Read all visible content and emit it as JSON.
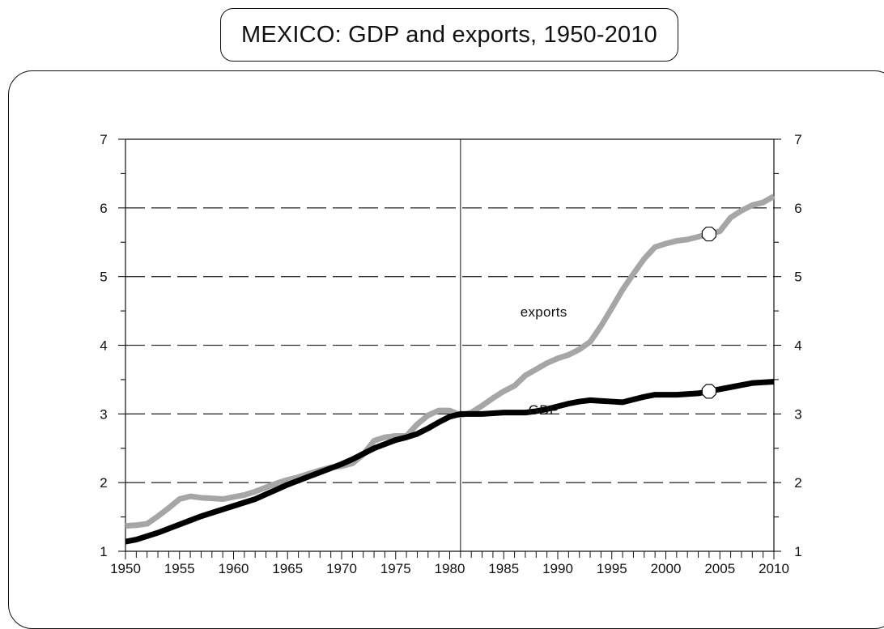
{
  "chart_data": {
    "type": "line",
    "title": "MEXICO: GDP and exports, 1950-2010",
    "xlim": [
      1950,
      2010
    ],
    "ylim": [
      1,
      7
    ],
    "x_ticks": [
      1950,
      1955,
      1960,
      1965,
      1970,
      1975,
      1980,
      1985,
      1990,
      1995,
      2000,
      2005,
      2010
    ],
    "y_ticks": [
      1,
      2,
      3,
      4,
      5,
      6,
      7
    ],
    "grid": "dashed horizontal",
    "reference_line_x": 1981,
    "series": [
      {
        "name": "exports",
        "color": "#a6a6a6",
        "x": [
          1950,
          1951,
          1952,
          1953,
          1954,
          1955,
          1956,
          1957,
          1958,
          1959,
          1960,
          1961,
          1962,
          1963,
          1964,
          1965,
          1966,
          1967,
          1968,
          1969,
          1970,
          1971,
          1972,
          1973,
          1974,
          1975,
          1976,
          1977,
          1978,
          1979,
          1980,
          1981,
          1982,
          1983,
          1984,
          1985,
          1986,
          1987,
          1988,
          1989,
          1990,
          1991,
          1992,
          1993,
          1994,
          1995,
          1996,
          1997,
          1998,
          1999,
          2000,
          2001,
          2002,
          2003,
          2004,
          2005,
          2006,
          2007,
          2008,
          2009,
          2010
        ],
        "values": [
          1.37,
          1.38,
          1.4,
          1.51,
          1.63,
          1.76,
          1.8,
          1.78,
          1.77,
          1.76,
          1.79,
          1.82,
          1.87,
          1.93,
          1.99,
          2.04,
          2.08,
          2.13,
          2.18,
          2.22,
          2.24,
          2.28,
          2.41,
          2.61,
          2.66,
          2.68,
          2.68,
          2.85,
          2.98,
          3.05,
          3.05,
          2.98,
          3.02,
          3.12,
          3.23,
          3.33,
          3.41,
          3.56,
          3.65,
          3.74,
          3.81,
          3.86,
          3.94,
          4.05,
          4.28,
          4.54,
          4.81,
          5.04,
          5.26,
          5.43,
          5.48,
          5.52,
          5.54,
          5.58,
          5.62,
          5.66,
          5.86,
          5.96,
          6.04,
          6.08,
          6.17
        ],
        "label_at": [
          1989,
          4.42
        ],
        "marker_x": 2004
      },
      {
        "name": "GDP",
        "color": "#000000",
        "x": [
          1950,
          1951,
          1952,
          1953,
          1954,
          1955,
          1956,
          1957,
          1958,
          1959,
          1960,
          1961,
          1962,
          1963,
          1964,
          1965,
          1966,
          1967,
          1968,
          1969,
          1970,
          1971,
          1972,
          1973,
          1974,
          1975,
          1976,
          1977,
          1978,
          1979,
          1980,
          1981,
          1982,
          1983,
          1984,
          1985,
          1986,
          1987,
          1988,
          1989,
          1990,
          1991,
          1992,
          1993,
          1994,
          1995,
          1996,
          1997,
          1998,
          1999,
          2000,
          2001,
          2002,
          2003,
          2004,
          2005,
          2006,
          2007,
          2008,
          2009,
          2010
        ],
        "values": [
          1.14,
          1.17,
          1.22,
          1.27,
          1.33,
          1.39,
          1.45,
          1.51,
          1.56,
          1.61,
          1.66,
          1.71,
          1.76,
          1.83,
          1.9,
          1.97,
          2.03,
          2.09,
          2.15,
          2.21,
          2.27,
          2.34,
          2.42,
          2.5,
          2.56,
          2.62,
          2.66,
          2.71,
          2.79,
          2.88,
          2.96,
          3.0,
          3.0,
          3.0,
          3.01,
          3.02,
          3.02,
          3.02,
          3.04,
          3.07,
          3.11,
          3.15,
          3.18,
          3.2,
          3.19,
          3.18,
          3.17,
          3.21,
          3.25,
          3.28,
          3.28,
          3.28,
          3.29,
          3.3,
          3.33,
          3.36,
          3.39,
          3.42,
          3.45,
          3.46,
          3.47
        ],
        "label_at": [
          1989,
          2.99
        ],
        "marker_x": 2004
      }
    ]
  }
}
